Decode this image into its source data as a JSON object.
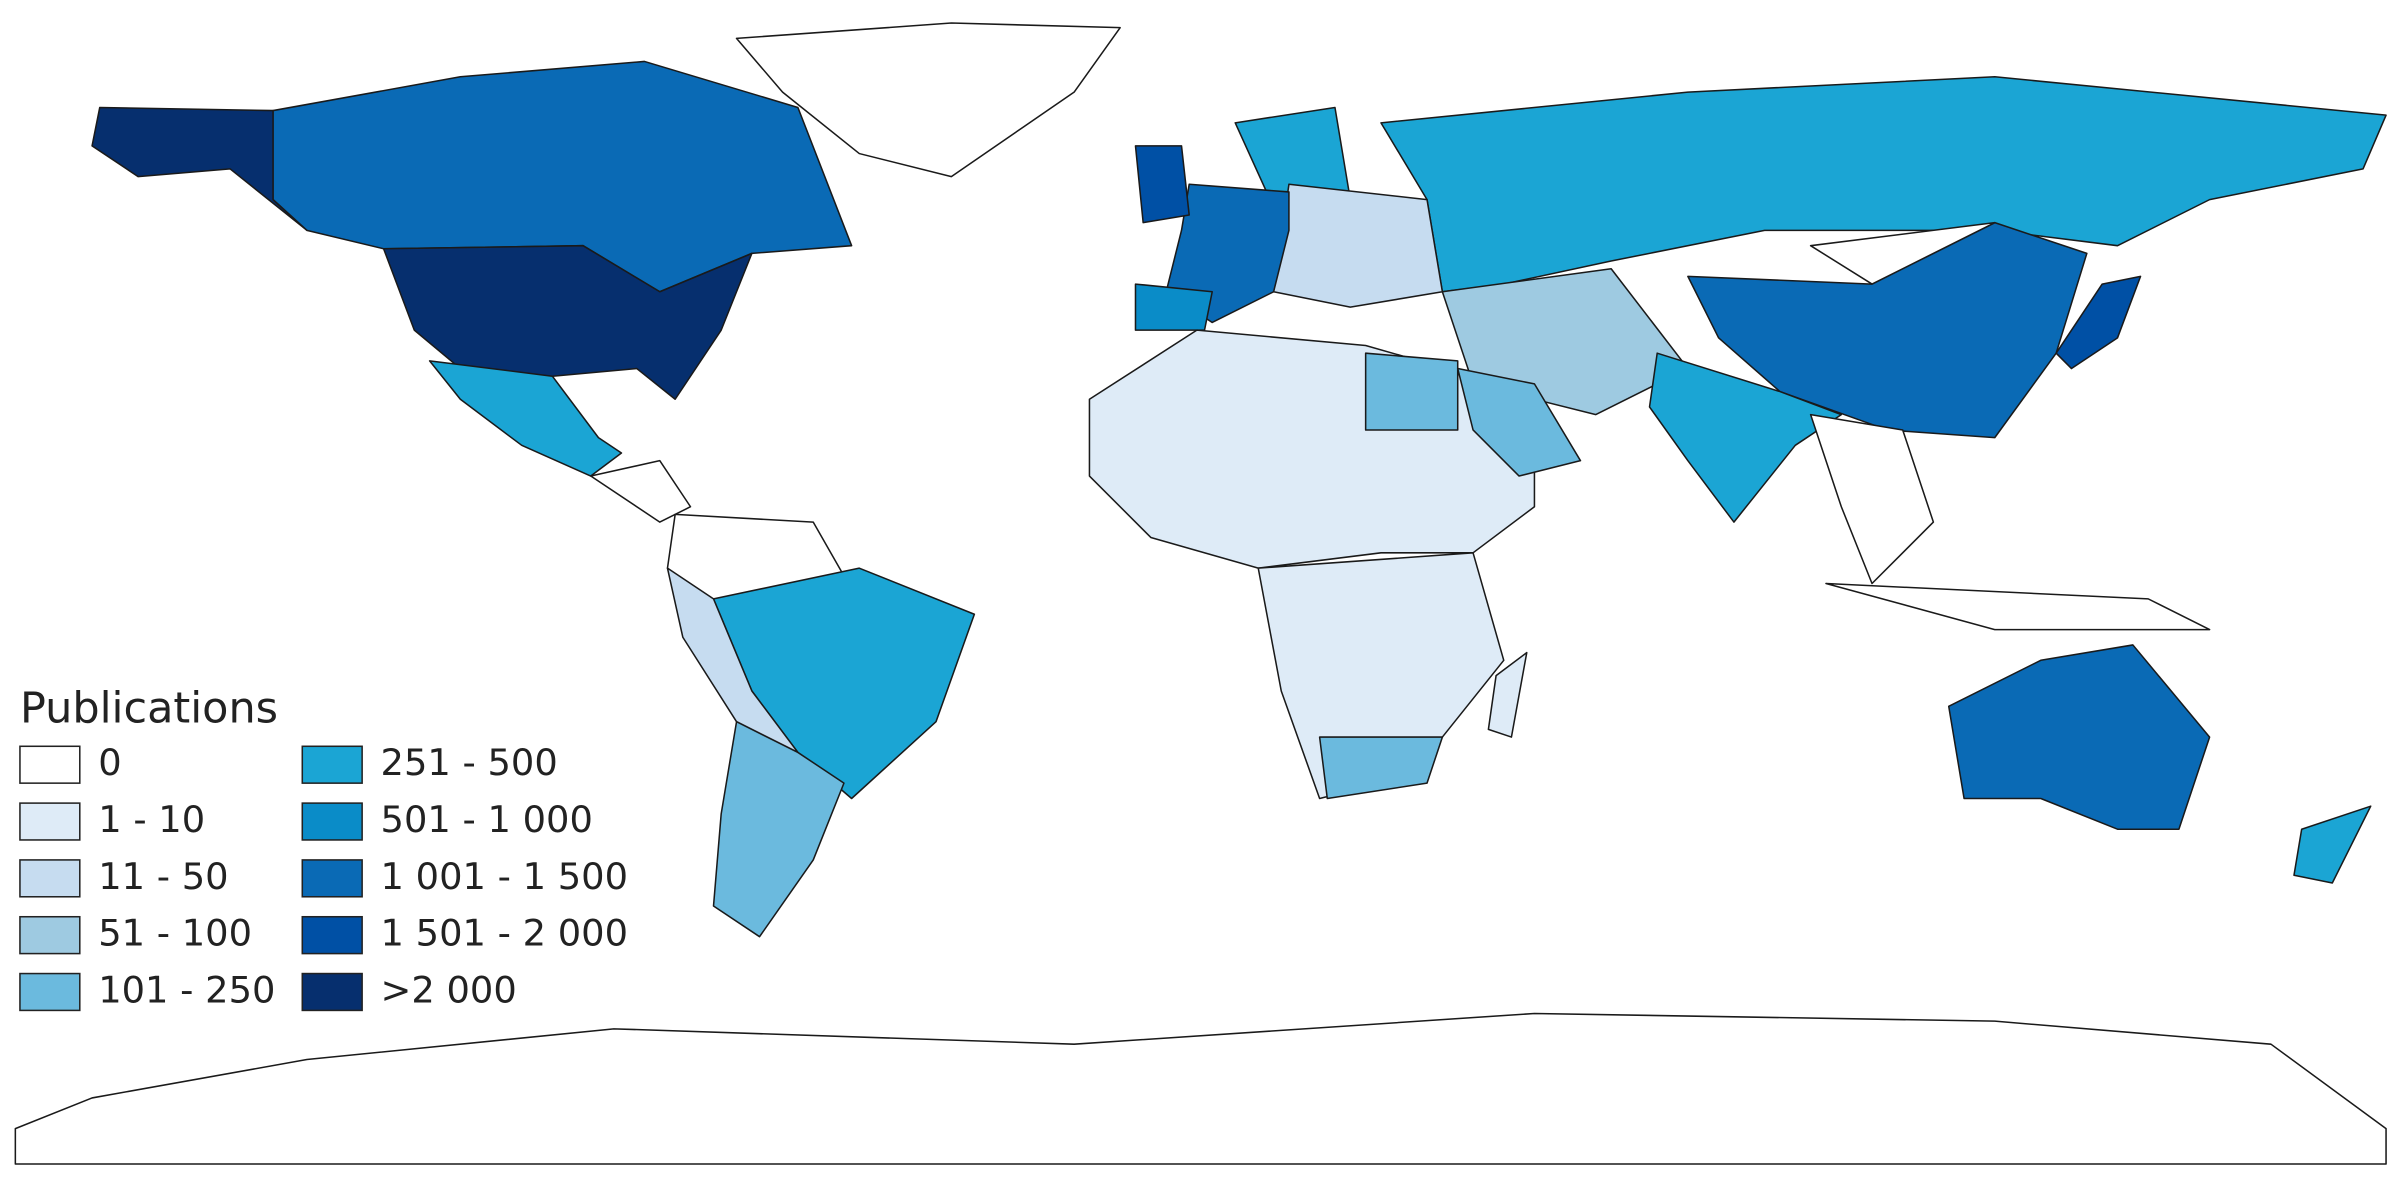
{
  "legend": {
    "title": "Publications",
    "classes": [
      {
        "label": "0",
        "color": "#ffffff"
      },
      {
        "label": "1 - 10",
        "color": "#deebf7"
      },
      {
        "label": "11 - 50",
        "color": "#c6dcf0"
      },
      {
        "label": "51 - 100",
        "color": "#9ecae1"
      },
      {
        "label": "101 - 250",
        "color": "#6bbade"
      },
      {
        "label": "251 - 500",
        "color": "#1ba5d4"
      },
      {
        "label": "501 - 1 000",
        "color": "#0a8cc8"
      },
      {
        "label": "1 001 - 1 500",
        "color": "#0a6ab5"
      },
      {
        "label": "1 501 - 2 000",
        "color": "#0050a5"
      },
      {
        "label": ">2 000",
        "color": "#062f6e"
      }
    ]
  }
}
